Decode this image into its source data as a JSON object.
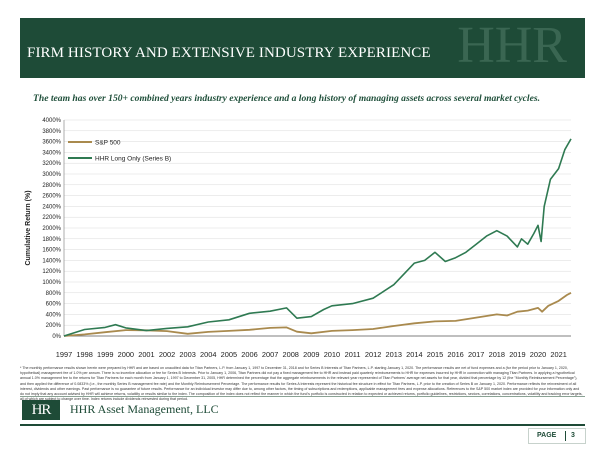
{
  "header": {
    "title": "FIRM HISTORY AND EXTENSIVE INDUSTRY EXPERIENCE",
    "logo_text": "HHR"
  },
  "subtitle": "The team has over 150+ combined years industry experience and a long history of managing assets across several market cycles.",
  "chart_data": {
    "type": "line",
    "ylabel": "Cumulative Return (%)",
    "xlabel": "",
    "ylim": [
      0,
      4000
    ],
    "yticks": [
      "0%",
      "200%",
      "400%",
      "600%",
      "800%",
      "1000%",
      "1200%",
      "1400%",
      "1600%",
      "1800%",
      "2000%",
      "2200%",
      "2400%",
      "2600%",
      "2800%",
      "3000%",
      "3200%",
      "3400%",
      "3600%",
      "3800%",
      "4000%"
    ],
    "categories": [
      "1997",
      "1998",
      "1999",
      "2000",
      "2001",
      "2002",
      "2003",
      "2004",
      "2005",
      "2006",
      "2007",
      "2008",
      "2009",
      "2010",
      "2011",
      "2012",
      "2013",
      "2014",
      "2015",
      "2016",
      "2017",
      "2018",
      "2019",
      "2020",
      "2021"
    ],
    "x": [
      1997,
      1998,
      1999,
      2000,
      2001,
      2002,
      2003,
      2004,
      2005,
      2006,
      2007,
      2008,
      2009,
      2010,
      2011,
      2012,
      2013,
      2014,
      2015,
      2016,
      2017,
      2018,
      2019,
      2020,
      2021
    ],
    "xlim": [
      1997,
      2021.6
    ],
    "series": [
      {
        "name": "S&P 500",
        "color": "#a98a4e",
        "x": [
          1997,
          1998,
          1999,
          2000,
          2001,
          2002,
          2003,
          2004,
          2005,
          2006,
          2007,
          2007.8,
          2008.3,
          2009,
          2010,
          2011,
          2012,
          2013,
          2014,
          2015,
          2016,
          2017,
          2018,
          2018.5,
          2019,
          2019.5,
          2020,
          2020.2,
          2020.5,
          2021,
          2021.4,
          2021.6
        ],
        "values": [
          0,
          30,
          70,
          110,
          105,
          90,
          40,
          75,
          95,
          115,
          150,
          160,
          80,
          50,
          95,
          110,
          130,
          185,
          235,
          270,
          280,
          340,
          400,
          380,
          450,
          470,
          520,
          450,
          560,
          650,
          760,
          800
        ]
      },
      {
        "name": "HHR Long Only (Series B)",
        "color": "#2f7a52",
        "x": [
          1997,
          1998,
          1999,
          1999.5,
          2000,
          2001,
          2002,
          2003,
          2004,
          2005,
          2006,
          2007,
          2007.8,
          2008.3,
          2009,
          2009.6,
          2010,
          2011,
          2012,
          2013,
          2014,
          2014.5,
          2015,
          2015.5,
          2016,
          2016.5,
          2017,
          2017.5,
          2018,
          2018.5,
          2019,
          2019.2,
          2019.5,
          2019.8,
          2020,
          2020.15,
          2020.3,
          2020.6,
          2021,
          2021.3,
          2021.6
        ],
        "values": [
          0,
          120,
          160,
          210,
          150,
          100,
          140,
          170,
          260,
          300,
          420,
          460,
          520,
          330,
          360,
          490,
          560,
          600,
          700,
          950,
          1350,
          1400,
          1550,
          1380,
          1450,
          1550,
          1700,
          1850,
          1950,
          1850,
          1650,
          1800,
          1700,
          1900,
          2050,
          1750,
          2400,
          2900,
          3100,
          3450,
          3650
        ]
      }
    ],
    "legend": "top-left"
  },
  "footnote": "* The monthly performance results shown herein were prepared by HHR and are based on unaudited data for Titan Partners, L.P. from January 1, 1997 to December 31, 2018 and for Series B Interests of Titan Partners, L.P. starting January 1, 2020. The performance results are net of fund expenses and a (for the period prior to January 1, 2020, hypothetical) management fee of 1.0% per annum. There is no incentive allocation or fee for Series B Interests. Prior to January 1, 2006, Titan Partners did not pay a fixed management fee to HHR and instead paid quarterly reimbursements to HHR for expenses incurred by HHR in connection with managing Titan Partners. In applying a hypothetical annual 1.0% management fee to the returns for Titan Partners for each month from January 1, 1997 to December 31, 2005, HHR determined the percentage that the aggregate reimbursements in the relevant year represented of Titan Partners' average net assets for that year, divided that percentage by 12 (the \"Monthly Reimbursement Percentage\"), and then applied the difference of 0.0833% (i.e., the monthly Series B management fee rate) and the Monthly Reimbursement Percentage. The performance results for Series A Interests represent the historical fee structure in effect for Titan Partners, L.P. prior to the creation of Series B on January 1, 2020. Performance reflects the reinvestment of all interest, dividends and other earnings. Past performance is no guarantee of future results. Performance for an individual investor may differ due to, among other factors, the timing of subscriptions and redemptions, applicable management fees and expense allocations. References to the S&P 500 market index are provided for your information only and do not imply that any account advised by HHR will achieve returns, volatility or results similar to the index. The composition of the index does not reflect the manner in which the fund's portfolio is constructed in relation to expected or achieved returns, portfolio guidelines, restrictions, sectors, correlations, concentrations, volatility and tracking error targets, all of which are subject to change over time. Index returns include dividends reinvested during that period.",
  "footer": {
    "logo_text": "HR",
    "company": "HHR Asset Management, LLC",
    "page_label": "PAGE",
    "page_number": "3"
  }
}
